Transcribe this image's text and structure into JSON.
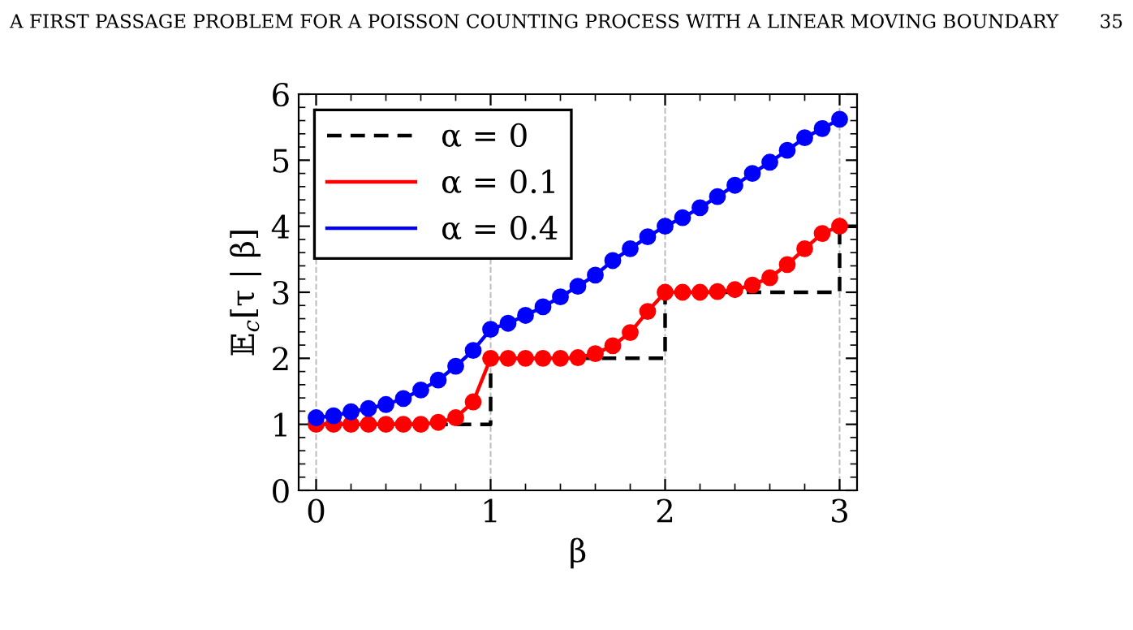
{
  "chart_data": {
    "type": "line",
    "annotations": [
      "A FIRST PASSAGE PROBLEM FOR A POISSON COUNTING PROCESS WITH A LINEAR MOVING BOUNDARY",
      "35"
    ],
    "xlabel": "β",
    "ylabel": "𝔼$_{c}$[τ | β]",
    "series": [
      {
        "name": "α = 0",
        "type": "step",
        "color": "#000000",
        "line_style": "dashed",
        "marker": "none",
        "x": [
          0,
          1,
          2,
          3,
          3.1
        ],
        "values": [
          1,
          2,
          3,
          4,
          4
        ]
      },
      {
        "name": "α = 0.1",
        "color": "#ff0000",
        "marker": "circle",
        "line_style": "solid",
        "x": [
          0,
          0.1,
          0.2,
          0.3,
          0.4,
          0.5,
          0.6,
          0.7,
          0.8,
          0.9,
          1.0,
          1.1,
          1.2,
          1.3,
          1.4,
          1.5,
          1.6,
          1.7,
          1.8,
          1.9,
          2.0,
          2.1,
          2.2,
          2.3,
          2.4,
          2.5,
          2.6,
          2.7,
          2.8,
          2.9,
          3.0
        ],
        "values": [
          1.0,
          1.0,
          1.0,
          1.0,
          1.0,
          1.0,
          1.0,
          1.03,
          1.1,
          1.34,
          2.0,
          2.0,
          2.0,
          2.0,
          2.0,
          2.01,
          2.07,
          2.19,
          2.39,
          2.71,
          3.0,
          3.0,
          3.0,
          3.01,
          3.04,
          3.11,
          3.22,
          3.42,
          3.66,
          3.89,
          4.0
        ]
      },
      {
        "name": "α = 0.4",
        "color": "#0000ff",
        "marker": "circle",
        "line_style": "solid",
        "x": [
          0,
          0.1,
          0.2,
          0.3,
          0.4,
          0.5,
          0.6,
          0.7,
          0.8,
          0.9,
          1.0,
          1.1,
          1.2,
          1.3,
          1.4,
          1.5,
          1.6,
          1.7,
          1.8,
          1.9,
          2.0,
          2.1,
          2.2,
          2.3,
          2.4,
          2.5,
          2.6,
          2.7,
          2.8,
          2.9,
          3.0
        ],
        "values": [
          1.1,
          1.13,
          1.19,
          1.24,
          1.3,
          1.39,
          1.52,
          1.67,
          1.88,
          2.12,
          2.44,
          2.53,
          2.65,
          2.78,
          2.93,
          3.09,
          3.26,
          3.48,
          3.66,
          3.84,
          4.0,
          4.13,
          4.28,
          4.45,
          4.62,
          4.8,
          4.97,
          5.15,
          5.34,
          5.48,
          5.62
        ]
      }
    ],
    "xlim": [
      -0.1,
      3.1
    ],
    "xticks": [
      0,
      1,
      2,
      3
    ],
    "ylim": [
      0,
      6
    ],
    "yticks": [
      0,
      1,
      2,
      3,
      4,
      5,
      6
    ],
    "grid": "x",
    "legend": "top left"
  }
}
